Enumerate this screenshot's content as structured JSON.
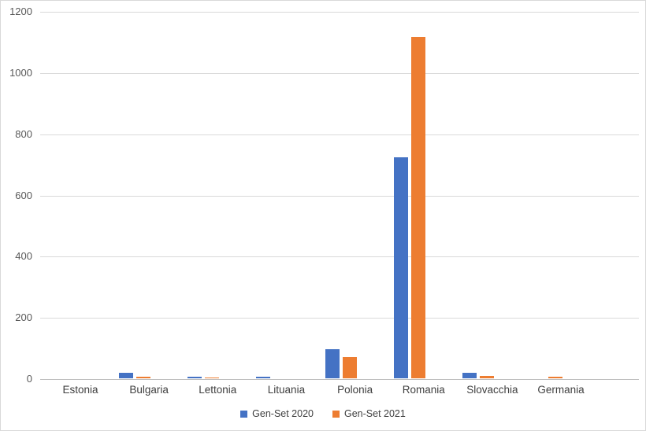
{
  "chart_data": {
    "type": "bar",
    "title": "",
    "xlabel": "",
    "ylabel": "",
    "categories": [
      "Estonia",
      "Bulgaria",
      "Lettonia",
      "Lituania",
      "Polonia",
      "Romania",
      "Slovacchia",
      "Germania"
    ],
    "series": [
      {
        "name": "Gen-Set 2020",
        "color": "#4472C4",
        "values": [
          0,
          18,
          5,
          5,
          95,
          722,
          18,
          0
        ]
      },
      {
        "name": "Gen-Set 2021",
        "color": "#ED7D31",
        "values": [
          0,
          5,
          3,
          0,
          70,
          1115,
          8,
          5
        ]
      }
    ],
    "ylim": [
      0,
      1200
    ],
    "ytick_step": 200,
    "ytick_labels": [
      "0",
      "200",
      "400",
      "600",
      "800",
      "1000",
      "1200"
    ],
    "grid": "horizontal",
    "legend_position": "bottom-center",
    "styles": {
      "background": "#FFFFFF",
      "border_color": "#D9D9D9",
      "gridline_color": "#D9D9D9",
      "axis_line_color": "#BFBFBF",
      "ytick_label_color": "#595959",
      "xtick_label_color": "#404040",
      "legend_text_color": "#404040"
    }
  }
}
